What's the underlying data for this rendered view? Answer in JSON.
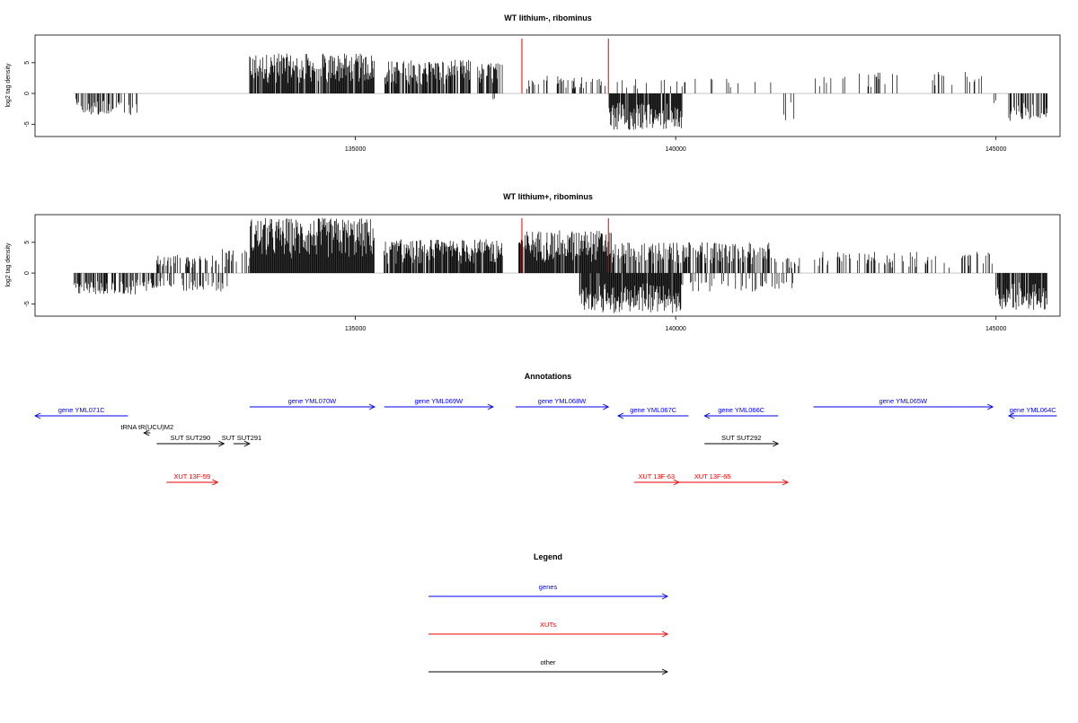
{
  "chart_data": [
    {
      "type": "bar",
      "title": "WT lithium-, ribominus",
      "ylabel": "log2 tag density",
      "xlim": [
        130000,
        146000
      ],
      "ylim": [
        -7,
        9.5
      ],
      "xticks": [
        "135000",
        "140000",
        "145000"
      ],
      "yticks": [
        "-5",
        "0",
        "5"
      ],
      "series": [
        {
          "strand": "forward",
          "segments": [
            {
              "from": 132950,
              "to": 133000,
              "max": 1.5,
              "density": 0.1
            },
            {
              "from": 133350,
              "to": 135300,
              "max": 6.5,
              "density": 0.85
            },
            {
              "from": 135450,
              "to": 136800,
              "max": 5.5,
              "density": 0.8
            },
            {
              "from": 136900,
              "to": 137300,
              "max": 5.0,
              "density": 0.7
            },
            {
              "from": 137650,
              "to": 138000,
              "max": 3.0,
              "density": 0.25
            },
            {
              "from": 138150,
              "to": 138900,
              "max": 3.0,
              "density": 0.25
            },
            {
              "from": 139000,
              "to": 141500,
              "max": 2.5,
              "density": 0.08
            },
            {
              "from": 142000,
              "to": 144000,
              "max": 3.5,
              "density": 0.06
            },
            {
              "from": 144000,
              "to": 145000,
              "max": 3.5,
              "density": 0.2
            }
          ]
        },
        {
          "strand": "reverse",
          "segments": [
            {
              "from": 130600,
              "to": 131600,
              "max": -3.5,
              "density": 0.35
            },
            {
              "from": 132950,
              "to": 133000,
              "max": -1.5,
              "density": 0.1
            },
            {
              "from": 137150,
              "to": 137200,
              "max": -1.0,
              "density": 0.1
            },
            {
              "from": 138950,
              "to": 140100,
              "max": -6.0,
              "density": 0.9
            },
            {
              "from": 141600,
              "to": 141950,
              "max": -5.0,
              "density": 0.1
            },
            {
              "from": 144900,
              "to": 145000,
              "max": -2.0,
              "density": 0.2
            },
            {
              "from": 145200,
              "to": 145800,
              "max": -4.5,
              "density": 0.5
            }
          ]
        }
      ],
      "markers": [
        137600,
        138950
      ],
      "marker_color": "#dd0000"
    },
    {
      "type": "bar",
      "title": "WT lithium+, ribominus",
      "ylabel": "log2 tag density",
      "xlim": [
        130000,
        146000
      ],
      "ylim": [
        -7,
        9.5
      ],
      "xticks": [
        "135000",
        "140000",
        "145000"
      ],
      "yticks": [
        "-5",
        "0",
        "5"
      ],
      "series": [
        {
          "strand": "forward",
          "segments": [
            {
              "from": 131900,
              "to": 132700,
              "max": 3.0,
              "density": 0.4
            },
            {
              "from": 132700,
              "to": 133350,
              "max": 4.0,
              "density": 0.25
            },
            {
              "from": 133350,
              "to": 135300,
              "max": 9.0,
              "density": 1.0
            },
            {
              "from": 135450,
              "to": 137300,
              "max": 5.5,
              "density": 0.9
            },
            {
              "from": 137550,
              "to": 139000,
              "max": 7.0,
              "density": 0.95
            },
            {
              "from": 139000,
              "to": 141500,
              "max": 5.0,
              "density": 0.6
            },
            {
              "from": 141500,
              "to": 142000,
              "max": 2.5,
              "density": 0.2
            },
            {
              "from": 142150,
              "to": 145000,
              "max": 3.5,
              "density": 0.2
            }
          ]
        },
        {
          "strand": "reverse",
          "segments": [
            {
              "from": 130600,
              "to": 131900,
              "max": -3.5,
              "density": 0.55
            },
            {
              "from": 131900,
              "to": 133000,
              "max": -3.0,
              "density": 0.25
            },
            {
              "from": 138500,
              "to": 140100,
              "max": -6.5,
              "density": 0.95
            },
            {
              "from": 140100,
              "to": 141900,
              "max": -3.0,
              "density": 0.2
            },
            {
              "from": 145000,
              "to": 145800,
              "max": -6.0,
              "density": 0.85
            }
          ]
        }
      ],
      "markers": [
        137600,
        138950
      ],
      "marker_color": "#dd0000"
    }
  ],
  "annotations": {
    "title": "Annotations",
    "items": [
      {
        "label": "gene YML071C",
        "start": 130000,
        "end": 131450,
        "strand": "-",
        "row": 0,
        "kind": "gene"
      },
      {
        "label": "gene YML070W",
        "start": 133350,
        "end": 135300,
        "strand": "+",
        "row": 1,
        "kind": "gene"
      },
      {
        "label": "gene YML069W",
        "start": 135450,
        "end": 137150,
        "strand": "+",
        "row": 1,
        "kind": "gene"
      },
      {
        "label": "gene YML068W",
        "start": 137500,
        "end": 138950,
        "strand": "+",
        "row": 1,
        "kind": "gene"
      },
      {
        "label": "gene YML067C",
        "start": 139100,
        "end": 140200,
        "strand": "-",
        "row": 0,
        "kind": "gene"
      },
      {
        "label": "gene YML066C",
        "start": 140450,
        "end": 141600,
        "strand": "-",
        "row": 0,
        "kind": "gene"
      },
      {
        "label": "gene YML065W",
        "start": 142150,
        "end": 144950,
        "strand": "+",
        "row": 1,
        "kind": "gene"
      },
      {
        "label": "gene YML064C",
        "start": 145200,
        "end": 145950,
        "strand": "-",
        "row": 0,
        "kind": "gene"
      },
      {
        "label": "tRNA tR(UCU)M2",
        "start": 131700,
        "end": 131800,
        "strand": "-",
        "row": 2,
        "kind": "other"
      },
      {
        "label": "SUT SUT290",
        "start": 131900,
        "end": 132950,
        "strand": "+",
        "row": 3,
        "kind": "other"
      },
      {
        "label": "SUT SUT291",
        "start": 133100,
        "end": 133350,
        "strand": "+",
        "row": 3,
        "kind": "other"
      },
      {
        "label": "SUT SUT292",
        "start": 140450,
        "end": 141600,
        "strand": "+",
        "row": 3,
        "kind": "other"
      },
      {
        "label": "XUT 13F-59",
        "start": 132050,
        "end": 132850,
        "strand": "+",
        "row": 4,
        "kind": "xut"
      },
      {
        "label": "XUT 13F-63",
        "start": 139350,
        "end": 140050,
        "strand": "+",
        "row": 4,
        "kind": "xut"
      },
      {
        "label": "XUT 13F-65",
        "start": 139400,
        "end": 141750,
        "strand": "+",
        "row": 4,
        "kind": "xut"
      }
    ]
  },
  "legend": {
    "title": "Legend",
    "items": [
      {
        "label": "genes",
        "color": "#0000ee"
      },
      {
        "label": "XUTs",
        "color": "#ee0000"
      },
      {
        "label": "other",
        "color": "#000000"
      }
    ]
  },
  "colors": {
    "gene": "#0000ee",
    "xut": "#ee0000",
    "other": "#000000",
    "baseline": "#bbbbbb"
  }
}
